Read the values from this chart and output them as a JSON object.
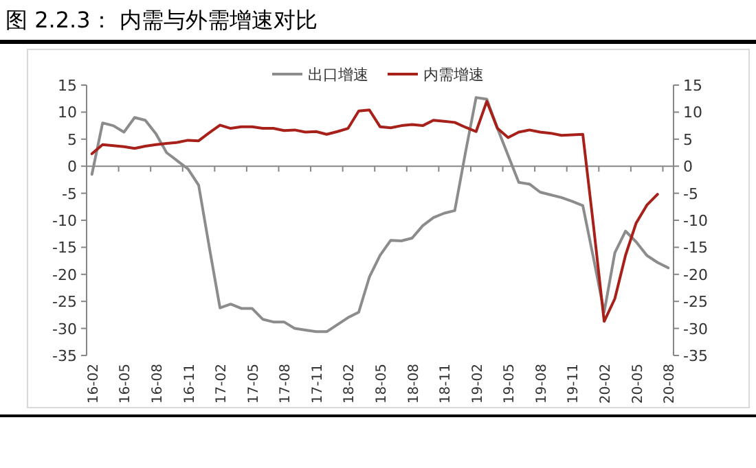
{
  "chart_data": {
    "type": "line",
    "title": "图 2.2.3： 内需与外需增速对比",
    "categories": [
      "16-02",
      null,
      null,
      "16-05",
      null,
      null,
      "16-08",
      null,
      null,
      "16-11",
      null,
      null,
      "17-02",
      null,
      null,
      "17-05",
      null,
      null,
      "17-08",
      null,
      null,
      "17-11",
      null,
      null,
      "18-02",
      null,
      null,
      "18-05",
      null,
      null,
      "18-08",
      null,
      null,
      "18-11",
      null,
      null,
      "19-02",
      null,
      null,
      "19-05",
      null,
      null,
      "19-08",
      null,
      null,
      "19-11",
      null,
      null,
      "20-02",
      null,
      null,
      "20-05",
      null,
      null,
      "20-08"
    ],
    "series": [
      {
        "name": "出口增速",
        "color": "#8c8c8c",
        "values": [
          -1.5,
          8,
          7.5,
          6.3,
          9,
          8.5,
          6,
          2.5,
          1,
          -0.5,
          -3.5,
          -15,
          -26.2,
          -25.5,
          -26.3,
          -26.3,
          -28.3,
          -28.8,
          -28.8,
          -30,
          -30.3,
          -30.6,
          -30.6,
          -29.3,
          -28,
          -27,
          -20.5,
          -16.5,
          -13.7,
          -13.8,
          -13.3,
          -11,
          -9.5,
          -8.7,
          -8.2,
          2.5,
          12.7,
          12.4,
          7,
          2,
          -3,
          -3.3,
          -4.8,
          -5.3,
          -5.8,
          -6.5,
          -7.3,
          -17,
          -27,
          -16,
          -12,
          -14,
          -16.5,
          -17.8,
          -18.8
        ]
      },
      {
        "name": "内需增速",
        "color": "#a8201a",
        "values": [
          2.3,
          4,
          3.8,
          3.6,
          3.3,
          3.7,
          4,
          4.2,
          4.4,
          4.8,
          4.7,
          6.2,
          7.6,
          7,
          7.3,
          7.3,
          7,
          7,
          6.6,
          6.7,
          6.3,
          6.4,
          5.9,
          6.4,
          7,
          10.2,
          10.4,
          7.3,
          7.1,
          7.5,
          7.7,
          7.5,
          8.5,
          8.3,
          8.1,
          7.2,
          6.4,
          12,
          7,
          5.3,
          6.3,
          6.7,
          6.3,
          6.1,
          5.7,
          5.8,
          5.9,
          -11,
          -28.7,
          -24.5,
          -16.5,
          -10.5,
          -7.2,
          -5.2,
          null
        ]
      }
    ],
    "ylim": [
      -35,
      15
    ],
    "yticks": [
      -35,
      -30,
      -25,
      -20,
      -15,
      -10,
      -5,
      0,
      5,
      10,
      15
    ],
    "y2lim": [
      -35,
      15
    ],
    "y2ticks": [
      -35,
      -30,
      -25,
      -20,
      -15,
      -10,
      -5,
      0,
      5,
      10,
      15
    ],
    "legend": "top",
    "marker": "none",
    "line_style": "solid"
  }
}
